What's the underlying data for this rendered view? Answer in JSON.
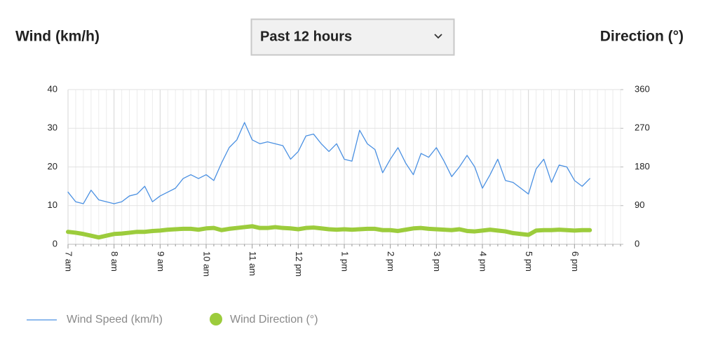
{
  "header": {
    "left_title": "Wind (km/h)",
    "right_title": "Direction (°)",
    "dropdown": "Past 12 hours"
  },
  "chart_data": {
    "type": "line",
    "categories": [
      "7 am",
      null,
      null,
      null,
      null,
      null,
      "8 am",
      null,
      null,
      null,
      null,
      null,
      "9 am",
      null,
      null,
      null,
      null,
      null,
      "10 am",
      null,
      null,
      null,
      null,
      null,
      "11 am",
      null,
      null,
      null,
      null,
      null,
      "12 pm",
      null,
      null,
      null,
      null,
      null,
      "1 pm",
      null,
      null,
      null,
      null,
      null,
      "2 pm",
      null,
      null,
      null,
      null,
      null,
      "3 pm",
      null,
      null,
      null,
      null,
      null,
      "4 pm",
      null,
      null,
      null,
      null,
      null,
      "5 pm",
      null,
      null,
      null,
      null,
      null,
      "6 pm",
      null,
      null,
      null,
      null,
      null,
      null
    ],
    "series": [
      {
        "name": "Wind Speed (km/h)",
        "color": "#4a90e2",
        "values": [
          13.5,
          11,
          10.5,
          14,
          11.5,
          11,
          10.5,
          11,
          12.5,
          13,
          15,
          11,
          12.5,
          13.5,
          14.5,
          17,
          18,
          17,
          18,
          16.5,
          21,
          25,
          27,
          31.5,
          27,
          26,
          26.5,
          26,
          25.5,
          22,
          24,
          28,
          28.5,
          26,
          24,
          26,
          22,
          21.5,
          29.5,
          26,
          24.5,
          18.5,
          22,
          25,
          21,
          18,
          23.5,
          22.5,
          25,
          21.5,
          17.5,
          20,
          23,
          20,
          14.5,
          18,
          22,
          16.5,
          16,
          14.5,
          13,
          19.5,
          22,
          16,
          20.5,
          20,
          16.5,
          15,
          17,
          null,
          null,
          null,
          null
        ]
      },
      {
        "name": "Wind Direction (°)",
        "color": "#9ccc3c",
        "axis": "y2",
        "values": [
          29,
          27,
          24,
          20,
          16,
          20,
          24,
          25,
          27,
          29,
          29,
          31,
          32,
          34,
          35,
          36,
          36,
          34,
          37,
          38,
          33,
          36,
          38,
          40,
          42,
          38,
          38,
          40,
          38,
          37,
          35,
          38,
          39,
          37,
          35,
          34,
          35,
          34,
          35,
          36,
          36,
          33,
          33,
          31,
          34,
          37,
          38,
          36,
          35,
          34,
          33,
          35,
          31,
          30,
          32,
          34,
          32,
          30,
          26,
          24,
          22,
          32,
          33,
          33,
          34,
          33,
          32,
          33,
          33,
          null,
          null,
          null,
          null
        ]
      }
    ],
    "ylim": [
      0,
      40
    ],
    "yticks": [
      0,
      10,
      20,
      30,
      40
    ],
    "y2lim": [
      0,
      360
    ],
    "y2ticks": [
      0,
      90,
      180,
      270,
      360
    ],
    "grid": true,
    "legend": "bottom-left"
  }
}
